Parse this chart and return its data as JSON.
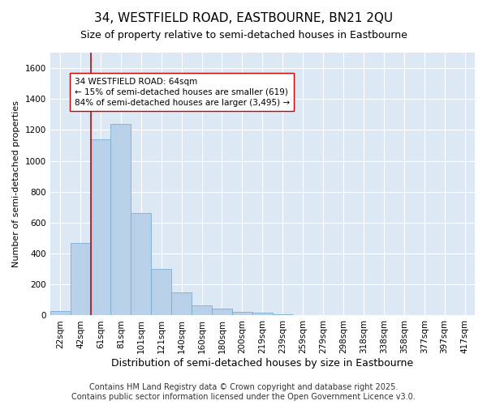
{
  "title": "34, WESTFIELD ROAD, EASTBOURNE, BN21 2QU",
  "subtitle": "Size of property relative to semi-detached houses in Eastbourne",
  "xlabel": "Distribution of semi-detached houses by size in Eastbourne",
  "ylabel": "Number of semi-detached properties",
  "footer": "Contains HM Land Registry data © Crown copyright and database right 2025.\nContains public sector information licensed under the Open Government Licence v3.0.",
  "bin_labels": [
    "22sqm",
    "42sqm",
    "61sqm",
    "81sqm",
    "101sqm",
    "121sqm",
    "140sqm",
    "160sqm",
    "180sqm",
    "200sqm",
    "219sqm",
    "239sqm",
    "259sqm",
    "279sqm",
    "298sqm",
    "318sqm",
    "338sqm",
    "358sqm",
    "377sqm",
    "397sqm",
    "417sqm"
  ],
  "bar_values": [
    27,
    470,
    1140,
    1240,
    660,
    300,
    150,
    65,
    45,
    25,
    20,
    10,
    0,
    0,
    0,
    0,
    0,
    0,
    0,
    0,
    0
  ],
  "bar_color": "#b8d0e8",
  "bar_edge_color": "#7bafd4",
  "highlight_color": "#cc0000",
  "red_line_x": 1.5,
  "annotation_text": "34 WESTFIELD ROAD: 64sqm\n← 15% of semi-detached houses are smaller (619)\n84% of semi-detached houses are larger (3,495) →",
  "ylim": [
    0,
    1700
  ],
  "yticks": [
    0,
    200,
    400,
    600,
    800,
    1000,
    1200,
    1400,
    1600
  ],
  "background_color": "#ffffff",
  "plot_background": "#dde8f5",
  "grid_color": "#ffffff",
  "title_fontsize": 11,
  "subtitle_fontsize": 9,
  "xlabel_fontsize": 9,
  "ylabel_fontsize": 8,
  "tick_fontsize": 7.5,
  "footer_fontsize": 7,
  "annotation_fontsize": 7.5
}
